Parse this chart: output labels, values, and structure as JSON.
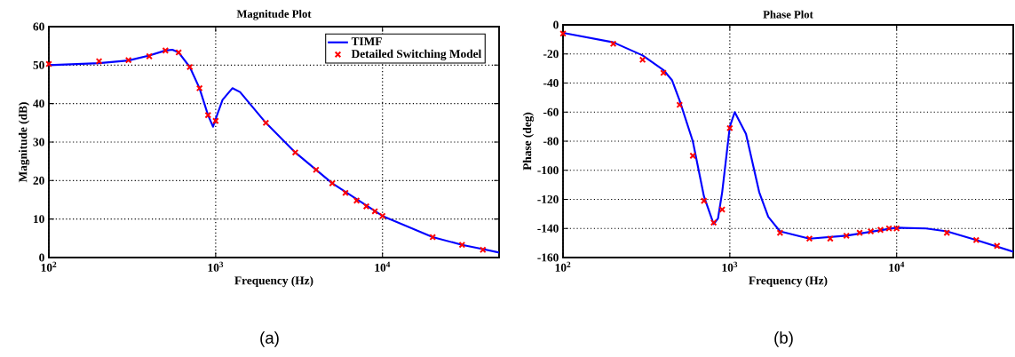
{
  "chart_data": [
    {
      "type": "line",
      "title": "Magnitude Plot",
      "xlabel": "Frequency (Hz)",
      "ylabel": "Magnitude (dB)",
      "log": "x",
      "grid": true,
      "legend": "top right",
      "xlim": [
        100,
        50000
      ],
      "ylim": [
        0,
        60
      ],
      "xticks": [
        {
          "value": 100,
          "label": "10$^{2}$"
        },
        {
          "value": 1000,
          "label": "10$^{3}$"
        },
        {
          "value": 10000,
          "label": "10$^{4}$"
        }
      ],
      "yticks": [
        0,
        10,
        20,
        30,
        40,
        50,
        60
      ],
      "annotations": [
        "(a)"
      ],
      "series": [
        {
          "name": "TIMF",
          "color": "#0000ff",
          "x": [
            100,
            200,
            300,
            400,
            500,
            550,
            600,
            700,
            800,
            900,
            964,
            1000,
            1100,
            1260,
            1400,
            2000,
            3000,
            5000,
            10000,
            20000,
            30000,
            40000,
            50000
          ],
          "values": [
            50,
            50.5,
            51.2,
            52.5,
            53.8,
            54,
            53.3,
            49.5,
            44,
            37,
            34,
            36,
            41,
            44,
            43,
            35,
            27.3,
            19.3,
            10.8,
            5.3,
            3.3,
            2.2,
            1.3
          ]
        },
        {
          "name": "Detailed Switching Model",
          "type": "scatter",
          "marker": "cross",
          "color": "#ff0000",
          "x": [
            100,
            200,
            300,
            400,
            500,
            600,
            700,
            800,
            900,
            1000,
            2000,
            3000,
            4000,
            5000,
            6000,
            7000,
            8000,
            9000,
            10000,
            20000,
            30000,
            40000
          ],
          "values": [
            50.3,
            51,
            51.3,
            52.3,
            53.8,
            53.3,
            49.5,
            44,
            37,
            35.5,
            35,
            27.3,
            22.8,
            19.3,
            16.8,
            14.8,
            13.3,
            12,
            10.8,
            5.3,
            3.3,
            2
          ]
        }
      ]
    },
    {
      "type": "line",
      "title": "Phase Plot",
      "xlabel": "Frequency (Hz)",
      "ylabel": "Phase (deg)",
      "log": "x",
      "grid": true,
      "xlim": [
        100,
        50000
      ],
      "ylim": [
        -160,
        0
      ],
      "xticks": [
        {
          "value": 100,
          "label": "10$^{2}$"
        },
        {
          "value": 1000,
          "label": "10$^{3}$"
        },
        {
          "value": 10000,
          "label": "10$^{4}$"
        }
      ],
      "yticks": [
        -160,
        -140,
        -120,
        -100,
        -80,
        -60,
        -40,
        -20,
        0
      ],
      "annotations": [
        "(b)"
      ],
      "series": [
        {
          "color": "#0000ff",
          "x": [
            100,
            200,
            300,
            400,
            450,
            500,
            600,
            700,
            800,
            850,
            900,
            1000,
            1070,
            1250,
            1500,
            1700,
            2000,
            3000,
            5000,
            10000,
            15000,
            20000,
            30000,
            50000
          ],
          "values": [
            -5.5,
            -12,
            -21,
            -31,
            -38,
            -52,
            -80,
            -118,
            -137,
            -133,
            -115,
            -70,
            -60,
            -75,
            -115,
            -132,
            -142,
            -147,
            -145,
            -139.5,
            -140,
            -142,
            -148,
            -156
          ]
        },
        {
          "type": "scatter",
          "marker": "cross",
          "color": "#ff0000",
          "x": [
            100,
            200,
            300,
            400,
            500,
            600,
            700,
            800,
            900,
            1000,
            2000,
            3000,
            4000,
            5000,
            6000,
            7000,
            8000,
            9000,
            10000,
            20000,
            30000,
            40000
          ],
          "values": [
            -6,
            -13,
            -24,
            -33,
            -55,
            -90,
            -121,
            -136,
            -127,
            -71,
            -143,
            -147,
            -147,
            -145,
            -143,
            -142,
            -141,
            -140,
            -140,
            -143,
            -148,
            -152
          ]
        }
      ]
    }
  ]
}
